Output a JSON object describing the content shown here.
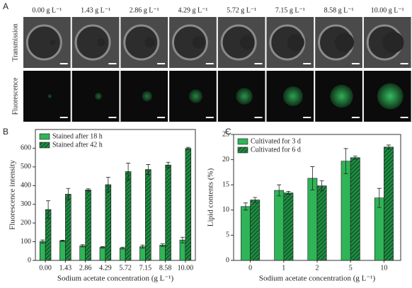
{
  "panel_a": {
    "panel": "A",
    "columns": [
      "0.00 g L⁻¹",
      "1.43 g L⁻¹",
      "2.86 g L⁻¹",
      "4.29 g L⁻¹",
      "5.72 g L⁻¹",
      "7.15 g L⁻¹",
      "8.58 g L⁻¹",
      "10.00 g L⁻¹"
    ],
    "rows": [
      "Transmission",
      "Fluorescence"
    ]
  },
  "chart_data": [
    {
      "type": "bar",
      "panel": "B",
      "ylabel": "Fluorescence intensity",
      "xlabel": "Sodium acetate concentration (g L⁻¹)",
      "categories": [
        "0.00",
        "1.43",
        "2.86",
        "4.29",
        "5.72",
        "7.15",
        "8.58",
        "10.00"
      ],
      "ylim": [
        0,
        700
      ],
      "yticks": [
        0,
        100,
        200,
        300,
        400,
        500,
        600
      ],
      "legend": "upper left",
      "series": [
        {
          "name": "Stained after 18 h",
          "color": "#2fb457",
          "hatch": false,
          "values": [
            101,
            105,
            78,
            70,
            66,
            74,
            82,
            109
          ],
          "errors": [
            8,
            3,
            6,
            4,
            5,
            8,
            7,
            15
          ]
        },
        {
          "name": "Stained after 42 h",
          "color": "#1e8c42",
          "hatch": true,
          "values": [
            272,
            354,
            377,
            405,
            475,
            486,
            510,
            599
          ],
          "errors": [
            47,
            31,
            6,
            40,
            45,
            27,
            15,
            6
          ]
        }
      ]
    },
    {
      "type": "bar",
      "panel": "C",
      "ylabel": "Lipid contents (%)",
      "xlabel": "Sodium acetate concentration (g L⁻¹)",
      "categories": [
        "0",
        "1",
        "2",
        "5",
        "10"
      ],
      "ylim": [
        0,
        25
      ],
      "yticks": [
        0,
        5,
        10,
        15,
        20,
        25
      ],
      "legend": "upper left",
      "series": [
        {
          "name": "Cultivated for 3 d",
          "color": "#2fb457",
          "hatch": false,
          "values": [
            10.7,
            13.9,
            16.3,
            19.7,
            12.4
          ],
          "errors": [
            0.7,
            1.1,
            2.3,
            2.5,
            1.9
          ]
        },
        {
          "name": "Cultivated for 6 d",
          "color": "#1e8c42",
          "hatch": true,
          "values": [
            12.0,
            13.4,
            14.8,
            20.4,
            22.5
          ],
          "errors": [
            0.5,
            0.3,
            1.0,
            0.3,
            0.4
          ]
        }
      ]
    }
  ]
}
